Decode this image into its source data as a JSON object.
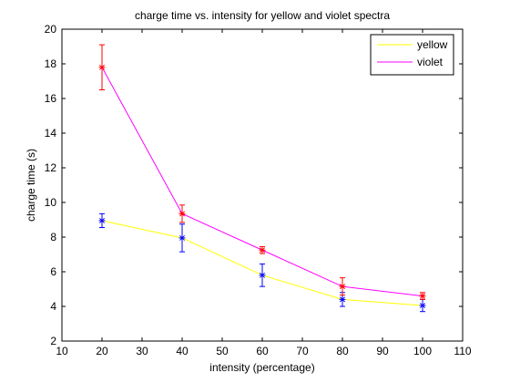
{
  "chart_data": {
    "type": "line",
    "title": "charge time vs. intensity for yellow and violet spectra",
    "xlabel": "intensity (percentage)",
    "ylabel": "charge time (s)",
    "xlim": [
      10,
      110
    ],
    "ylim": [
      2,
      20
    ],
    "xticks": [
      10,
      20,
      30,
      40,
      50,
      60,
      70,
      80,
      90,
      100,
      110
    ],
    "yticks": [
      2,
      4,
      6,
      8,
      10,
      12,
      14,
      16,
      18,
      20
    ],
    "grid": false,
    "legend_position": "top-right",
    "series": [
      {
        "name": "yellow",
        "line_color": "#ffff00",
        "marker_color": "#0000ff",
        "errorbar_color": "#0000ff",
        "x": [
          20,
          40,
          60,
          80,
          100
        ],
        "y": [
          8.95,
          7.95,
          5.8,
          4.4,
          4.05
        ],
        "err": [
          0.4,
          0.8,
          0.65,
          0.4,
          0.35
        ]
      },
      {
        "name": "violet",
        "line_color": "#ff00ff",
        "marker_color": "#ff0000",
        "errorbar_color": "#ff0000",
        "x": [
          20,
          40,
          60,
          80,
          100
        ],
        "y": [
          17.8,
          9.35,
          7.25,
          5.15,
          4.6
        ],
        "err": [
          1.3,
          0.5,
          0.2,
          0.5,
          0.2
        ]
      }
    ]
  }
}
